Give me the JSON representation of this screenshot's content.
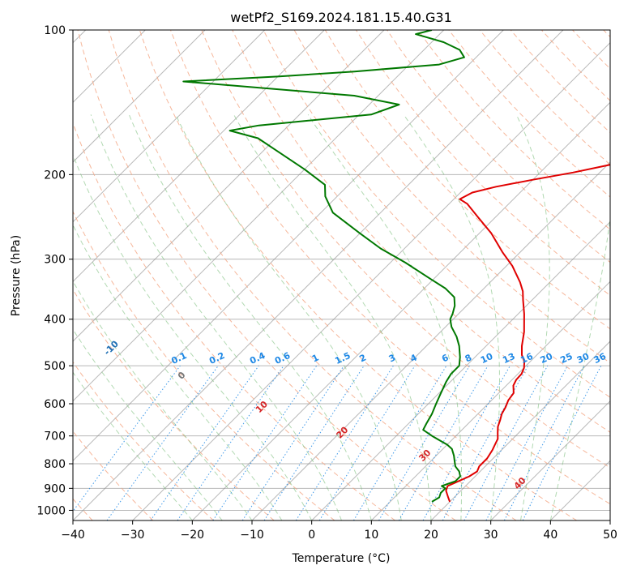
{
  "chart_data": {
    "type": "line",
    "title": "wetPf2_S169.2024.181.15.40.G31",
    "xlabel": "Temperature (°C)",
    "ylabel": "Pressure (hPa)",
    "xlim": [
      -40,
      50
    ],
    "ylim": [
      1050,
      100
    ],
    "y_scale": "log",
    "grid": true,
    "x_ticks": [
      -40,
      -30,
      -20,
      -10,
      0,
      10,
      20,
      30,
      40,
      50
    ],
    "x_tick_labels": [
      "−40",
      "−30",
      "−20",
      "−10",
      "0",
      "10",
      "20",
      "30",
      "40",
      "50"
    ],
    "y_ticks": [
      1000,
      900,
      800,
      700,
      600,
      500,
      400,
      300,
      200,
      100
    ],
    "y_tick_labels": [
      "1000",
      "900",
      "800",
      "700",
      "600",
      "500",
      "400",
      "300",
      "200",
      "100"
    ],
    "skew_degrees": 45,
    "series": [
      {
        "kind": "temperature",
        "color": "#e00000",
        "points": [
          [
            20.0,
            960
          ],
          [
            19.0,
            940
          ],
          [
            17.5,
            910
          ],
          [
            17.0,
            890
          ],
          [
            18.0,
            870
          ],
          [
            19.0,
            850
          ],
          [
            19.5,
            830
          ],
          [
            19.0,
            810
          ],
          [
            19.0,
            780
          ],
          [
            18.5,
            750
          ],
          [
            18.0,
            730
          ],
          [
            17.5,
            710
          ],
          [
            16.5,
            690
          ],
          [
            15.5,
            670
          ],
          [
            14.8,
            650
          ],
          [
            14.0,
            630
          ],
          [
            13.5,
            610
          ],
          [
            12.8,
            590
          ],
          [
            12.5,
            570
          ],
          [
            11.2,
            550
          ],
          [
            10.7,
            535
          ],
          [
            10.6,
            520
          ],
          [
            10.0,
            505
          ],
          [
            9.0,
            490
          ],
          [
            7.5,
            475
          ],
          [
            6.0,
            455
          ],
          [
            4.0,
            425
          ],
          [
            1.0,
            390
          ],
          [
            -1.5,
            365
          ],
          [
            -3.0,
            350
          ],
          [
            -5.0,
            335
          ],
          [
            -9.0,
            310
          ],
          [
            -13.0,
            290
          ],
          [
            -18.0,
            265
          ],
          [
            -23.0,
            245
          ],
          [
            -27.0,
            230
          ],
          [
            -29.0,
            225
          ],
          [
            -28.0,
            218
          ],
          [
            -25.0,
            212
          ],
          [
            -20.0,
            205
          ],
          [
            -14.5,
            198
          ],
          [
            -9.0,
            190
          ],
          [
            -6.0,
            185
          ],
          [
            -3.0,
            180
          ],
          [
            -1.5,
            175
          ],
          [
            0.0,
            168
          ],
          [
            1.0,
            160
          ],
          [
            3.0,
            152
          ],
          [
            6.0,
            142
          ],
          [
            8.0,
            133
          ],
          [
            9.5,
            125
          ],
          [
            13.0,
            118
          ],
          [
            17.0,
            110
          ],
          [
            21.0,
            100
          ]
        ]
      },
      {
        "kind": "dewpoint",
        "color": "#007800",
        "points": [
          [
            17.0,
            960
          ],
          [
            17.5,
            940
          ],
          [
            17.0,
            920
          ],
          [
            17.0,
            900
          ],
          [
            16.0,
            890
          ],
          [
            17.5,
            870
          ],
          [
            17.5,
            850
          ],
          [
            16.5,
            830
          ],
          [
            15.0,
            810
          ],
          [
            14.0,
            790
          ],
          [
            13.0,
            770
          ],
          [
            11.5,
            745
          ],
          [
            10.0,
            730
          ],
          [
            8.0,
            715
          ],
          [
            6.0,
            700
          ],
          [
            3.5,
            680
          ],
          [
            3.0,
            660
          ],
          [
            2.3,
            630
          ],
          [
            1.3,
            600
          ],
          [
            0.3,
            570
          ],
          [
            -0.7,
            540
          ],
          [
            -1.2,
            520
          ],
          [
            -1.2,
            500
          ],
          [
            -2.5,
            480
          ],
          [
            -4.5,
            455
          ],
          [
            -6.5,
            435
          ],
          [
            -9.0,
            415
          ],
          [
            -10.5,
            400
          ],
          [
            -11.0,
            390
          ],
          [
            -12.0,
            375
          ],
          [
            -13.5,
            360
          ],
          [
            -16.5,
            345
          ],
          [
            -20.5,
            330
          ],
          [
            -27.5,
            305
          ],
          [
            -34.0,
            285
          ],
          [
            -40.0,
            265
          ],
          [
            -48.0,
            240
          ],
          [
            -52.0,
            222
          ],
          [
            -54.0,
            210
          ],
          [
            -60.0,
            195
          ],
          [
            -67.0,
            180
          ],
          [
            -73.0,
            168
          ],
          [
            -79.0,
            162
          ],
          [
            -75.0,
            158
          ],
          [
            -58.0,
            150
          ],
          [
            -55.0,
            143
          ],
          [
            -64.0,
            137
          ],
          [
            -95.0,
            128
          ],
          [
            -80.0,
            125
          ],
          [
            -68.0,
            122
          ],
          [
            -55.0,
            118
          ],
          [
            -52.0,
            114
          ],
          [
            -54.0,
            110
          ],
          [
            -58.0,
            106
          ],
          [
            -64.0,
            102
          ],
          [
            -62.0,
            100
          ]
        ]
      }
    ],
    "dry_adiabat_labels": [
      "-100",
      "-90",
      "-80",
      "-70",
      "-60",
      "-50",
      "-40",
      "-30",
      "-20",
      "-10",
      "0",
      "10",
      "20",
      "30",
      "40"
    ],
    "mixing_ratio_labels": [
      "0.1",
      "0.2",
      "0.4",
      "0.6",
      "1",
      "1.5",
      "2",
      "3",
      "4",
      "6",
      "8",
      "10",
      "13",
      "16",
      "20",
      "25",
      "30",
      "36"
    ],
    "mixing_ratio_values": [
      0.1,
      0.2,
      0.4,
      0.6,
      1,
      1.5,
      2,
      3,
      4,
      6,
      8,
      10,
      13,
      16,
      20,
      25,
      30,
      36
    ],
    "colors": {
      "dry_adiabat": "#f4a582",
      "moist_adiabat": "#7fbf7f",
      "mixing_ratio": "#1e88e5",
      "isotherm": "#888888",
      "isobar": "#888888",
      "label_blue": "#1f6fb4",
      "label_red": "#d62728",
      "label_gray": "#777777"
    }
  }
}
